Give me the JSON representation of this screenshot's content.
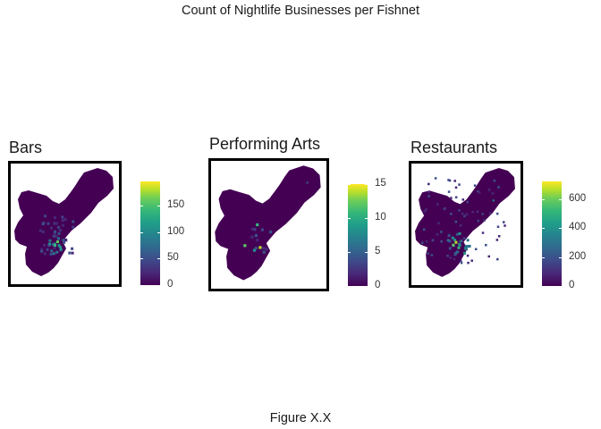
{
  "title": "Count of Nightlife Businesses per Fishnet",
  "caption": "Figure X.X",
  "colors": {
    "base": "#440154",
    "palette": "viridis",
    "low": "#440154",
    "high": "#fde725"
  },
  "panels": [
    {
      "title": "Bars",
      "legend": {
        "min": 0,
        "max": 195,
        "ticks": [
          0,
          50,
          100,
          150
        ],
        "labels": [
          "0",
          "50",
          "100",
          "150"
        ]
      }
    },
    {
      "title": "Performing Arts",
      "legend": {
        "min": 0,
        "max": 15,
        "ticks": [
          0,
          5,
          10,
          15
        ],
        "labels": [
          "0",
          "5",
          "10",
          "15"
        ]
      }
    },
    {
      "title": "Restaurants",
      "legend": {
        "min": 0,
        "max": 720,
        "ticks": [
          0,
          200,
          400,
          600
        ],
        "labels": [
          "0",
          "200",
          "400",
          "600"
        ]
      }
    }
  ]
}
